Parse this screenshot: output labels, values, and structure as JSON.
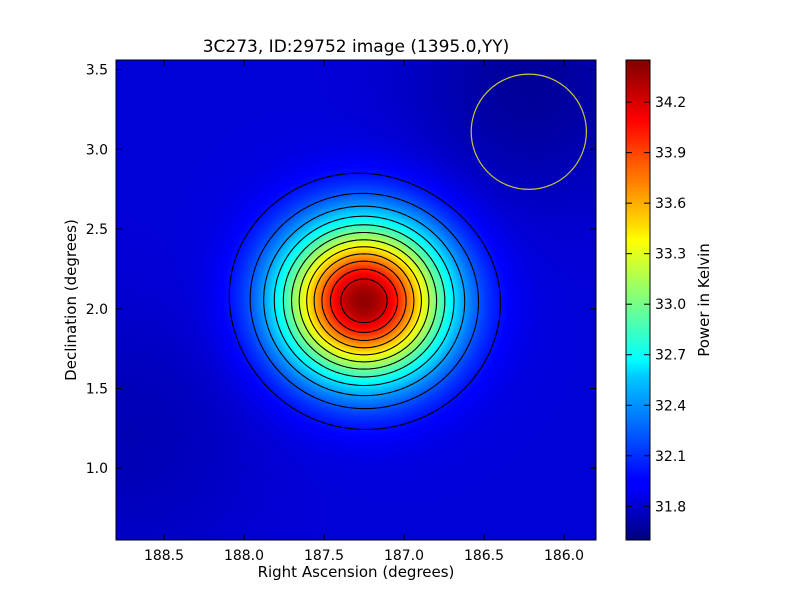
{
  "chart_data": {
    "type": "heatmap",
    "title": "3C273, ID:29752 image (1395.0,YY)",
    "xlabel": "Right Ascension (degrees)",
    "ylabel": "Declination (degrees)",
    "colorbar_label": "Power in Kelvin",
    "colormap": "jet",
    "x_inverted": true,
    "xlim": [
      188.8,
      185.8
    ],
    "ylim": [
      0.55,
      3.56
    ],
    "x_ticks": [
      188.5,
      188.0,
      187.5,
      187.0,
      186.5,
      186.0
    ],
    "x_tick_labels": [
      "188.5",
      "188.0",
      "187.5",
      "187.0",
      "186.5",
      "186.0"
    ],
    "y_ticks": [
      1.0,
      1.5,
      2.0,
      2.5,
      3.0,
      3.5
    ],
    "y_tick_labels": [
      "1.0",
      "1.5",
      "2.0",
      "2.5",
      "3.0",
      "3.5"
    ],
    "colorbar_range": [
      31.6,
      34.45
    ],
    "colorbar_ticks": [
      31.8,
      32.1,
      32.4,
      32.7,
      33.0,
      33.3,
      33.6,
      33.9,
      34.2
    ],
    "colorbar_tick_labels": [
      "31.8",
      "32.1",
      "32.4",
      "32.7",
      "33.0",
      "33.3",
      "33.6",
      "33.9",
      "34.2"
    ],
    "background_level": 31.85,
    "peak": {
      "ra": 187.25,
      "dec": 2.05,
      "value": 34.4,
      "sigma_ra": 0.36,
      "sigma_dec": 0.34
    },
    "beam_circle": {
      "ra": 186.22,
      "dec": 3.11,
      "radius_deg": 0.36,
      "color": "#c8c832"
    },
    "contour_levels": [
      32.0,
      32.2,
      32.4,
      32.6,
      32.8,
      33.0,
      33.2,
      33.4,
      33.6,
      33.8,
      34.0,
      34.2
    ]
  }
}
